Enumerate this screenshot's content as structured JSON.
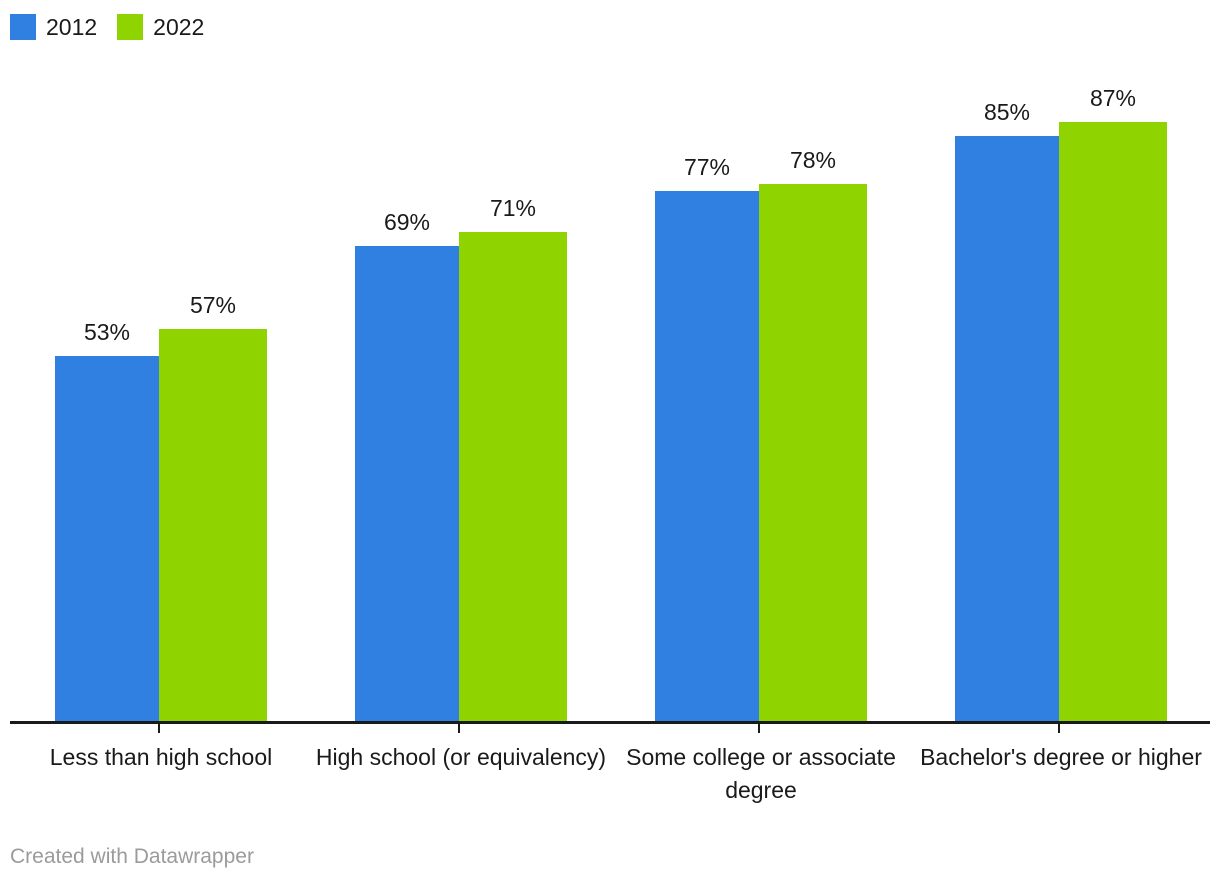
{
  "chart_data": {
    "type": "bar",
    "title": "",
    "categories": [
      "Less than high school",
      "High school (or equivalency)",
      "Some college or associate degree",
      "Bachelor's degree or higher"
    ],
    "series": [
      {
        "name": "2012",
        "color": "#3080E2",
        "values": [
          53,
          69,
          77,
          85
        ]
      },
      {
        "name": "2022",
        "color": "#8FD400",
        "values": [
          57,
          71,
          78,
          87
        ]
      }
    ],
    "value_suffix": "%",
    "value_labels": [
      "53%",
      "57%",
      "69%",
      "71%",
      "77%",
      "78%",
      "85%",
      "87%"
    ],
    "ylim": [
      0,
      100
    ],
    "grid": false,
    "legend_position": "top-left",
    "xlabel": "",
    "ylabel": ""
  },
  "colors": {
    "axis": "#1A1A1A",
    "label_text": "#1A1A1A",
    "credit_text": "#9B9B9B",
    "background": "#FFFFFF"
  },
  "footer": {
    "credit": "Created with Datawrapper"
  }
}
